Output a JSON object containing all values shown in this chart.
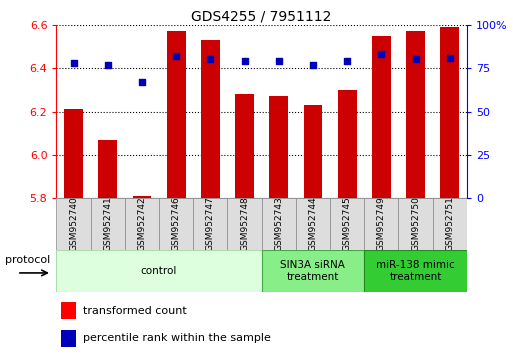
{
  "title": "GDS4255 / 7951112",
  "samples": [
    "GSM952740",
    "GSM952741",
    "GSM952742",
    "GSM952746",
    "GSM952747",
    "GSM952748",
    "GSM952743",
    "GSM952744",
    "GSM952745",
    "GSM952749",
    "GSM952750",
    "GSM952751"
  ],
  "bar_values": [
    6.21,
    6.07,
    5.81,
    6.57,
    6.53,
    6.28,
    6.27,
    6.23,
    6.3,
    6.55,
    6.57,
    6.59
  ],
  "dot_values": [
    78,
    77,
    67,
    82,
    80,
    79,
    79,
    77,
    79,
    83,
    80,
    81
  ],
  "ylim_left": [
    5.8,
    6.6
  ],
  "ylim_right": [
    0,
    100
  ],
  "yticks_left": [
    5.8,
    6.0,
    6.2,
    6.4,
    6.6
  ],
  "yticks_right": [
    0,
    25,
    50,
    75,
    100
  ],
  "bar_color": "#cc0000",
  "dot_color": "#0000bb",
  "bar_bottom": 5.8,
  "protocol_groups": [
    {
      "label": "control",
      "start": 0,
      "end": 6,
      "color": "#ddffdd",
      "border": "#aaddaa"
    },
    {
      "label": "SIN3A siRNA\ntreatment",
      "start": 6,
      "end": 9,
      "color": "#88ee88",
      "border": "#44aa44"
    },
    {
      "label": "miR-138 mimic\ntreatment",
      "start": 9,
      "end": 12,
      "color": "#33cc33",
      "border": "#228822"
    }
  ]
}
